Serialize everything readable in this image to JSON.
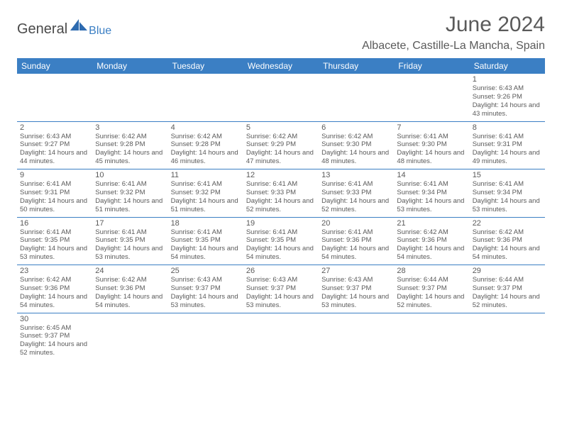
{
  "logo": {
    "general": "General",
    "blue": "Blue"
  },
  "title": "June 2024",
  "location": "Albacete, Castille-La Mancha, Spain",
  "colors": {
    "headerBg": "#3b7fc4",
    "headerText": "#ffffff",
    "bodyText": "#5a5a5a",
    "border": "#3b7fc4",
    "background": "#ffffff"
  },
  "dayHeaders": [
    "Sunday",
    "Monday",
    "Tuesday",
    "Wednesday",
    "Thursday",
    "Friday",
    "Saturday"
  ],
  "weeks": [
    [
      null,
      null,
      null,
      null,
      null,
      null,
      {
        "n": "1",
        "sr": "6:43 AM",
        "ss": "9:26 PM",
        "dl": "14 hours and 43 minutes."
      }
    ],
    [
      {
        "n": "2",
        "sr": "6:43 AM",
        "ss": "9:27 PM",
        "dl": "14 hours and 44 minutes."
      },
      {
        "n": "3",
        "sr": "6:42 AM",
        "ss": "9:28 PM",
        "dl": "14 hours and 45 minutes."
      },
      {
        "n": "4",
        "sr": "6:42 AM",
        "ss": "9:28 PM",
        "dl": "14 hours and 46 minutes."
      },
      {
        "n": "5",
        "sr": "6:42 AM",
        "ss": "9:29 PM",
        "dl": "14 hours and 47 minutes."
      },
      {
        "n": "6",
        "sr": "6:42 AM",
        "ss": "9:30 PM",
        "dl": "14 hours and 48 minutes."
      },
      {
        "n": "7",
        "sr": "6:41 AM",
        "ss": "9:30 PM",
        "dl": "14 hours and 48 minutes."
      },
      {
        "n": "8",
        "sr": "6:41 AM",
        "ss": "9:31 PM",
        "dl": "14 hours and 49 minutes."
      }
    ],
    [
      {
        "n": "9",
        "sr": "6:41 AM",
        "ss": "9:31 PM",
        "dl": "14 hours and 50 minutes."
      },
      {
        "n": "10",
        "sr": "6:41 AM",
        "ss": "9:32 PM",
        "dl": "14 hours and 51 minutes."
      },
      {
        "n": "11",
        "sr": "6:41 AM",
        "ss": "9:32 PM",
        "dl": "14 hours and 51 minutes."
      },
      {
        "n": "12",
        "sr": "6:41 AM",
        "ss": "9:33 PM",
        "dl": "14 hours and 52 minutes."
      },
      {
        "n": "13",
        "sr": "6:41 AM",
        "ss": "9:33 PM",
        "dl": "14 hours and 52 minutes."
      },
      {
        "n": "14",
        "sr": "6:41 AM",
        "ss": "9:34 PM",
        "dl": "14 hours and 53 minutes."
      },
      {
        "n": "15",
        "sr": "6:41 AM",
        "ss": "9:34 PM",
        "dl": "14 hours and 53 minutes."
      }
    ],
    [
      {
        "n": "16",
        "sr": "6:41 AM",
        "ss": "9:35 PM",
        "dl": "14 hours and 53 minutes."
      },
      {
        "n": "17",
        "sr": "6:41 AM",
        "ss": "9:35 PM",
        "dl": "14 hours and 53 minutes."
      },
      {
        "n": "18",
        "sr": "6:41 AM",
        "ss": "9:35 PM",
        "dl": "14 hours and 54 minutes."
      },
      {
        "n": "19",
        "sr": "6:41 AM",
        "ss": "9:35 PM",
        "dl": "14 hours and 54 minutes."
      },
      {
        "n": "20",
        "sr": "6:41 AM",
        "ss": "9:36 PM",
        "dl": "14 hours and 54 minutes."
      },
      {
        "n": "21",
        "sr": "6:42 AM",
        "ss": "9:36 PM",
        "dl": "14 hours and 54 minutes."
      },
      {
        "n": "22",
        "sr": "6:42 AM",
        "ss": "9:36 PM",
        "dl": "14 hours and 54 minutes."
      }
    ],
    [
      {
        "n": "23",
        "sr": "6:42 AM",
        "ss": "9:36 PM",
        "dl": "14 hours and 54 minutes."
      },
      {
        "n": "24",
        "sr": "6:42 AM",
        "ss": "9:36 PM",
        "dl": "14 hours and 54 minutes."
      },
      {
        "n": "25",
        "sr": "6:43 AM",
        "ss": "9:37 PM",
        "dl": "14 hours and 53 minutes."
      },
      {
        "n": "26",
        "sr": "6:43 AM",
        "ss": "9:37 PM",
        "dl": "14 hours and 53 minutes."
      },
      {
        "n": "27",
        "sr": "6:43 AM",
        "ss": "9:37 PM",
        "dl": "14 hours and 53 minutes."
      },
      {
        "n": "28",
        "sr": "6:44 AM",
        "ss": "9:37 PM",
        "dl": "14 hours and 52 minutes."
      },
      {
        "n": "29",
        "sr": "6:44 AM",
        "ss": "9:37 PM",
        "dl": "14 hours and 52 minutes."
      }
    ],
    [
      {
        "n": "30",
        "sr": "6:45 AM",
        "ss": "9:37 PM",
        "dl": "14 hours and 52 minutes."
      },
      null,
      null,
      null,
      null,
      null,
      null
    ]
  ],
  "labels": {
    "sunrise": "Sunrise:",
    "sunset": "Sunset:",
    "daylight": "Daylight:"
  }
}
